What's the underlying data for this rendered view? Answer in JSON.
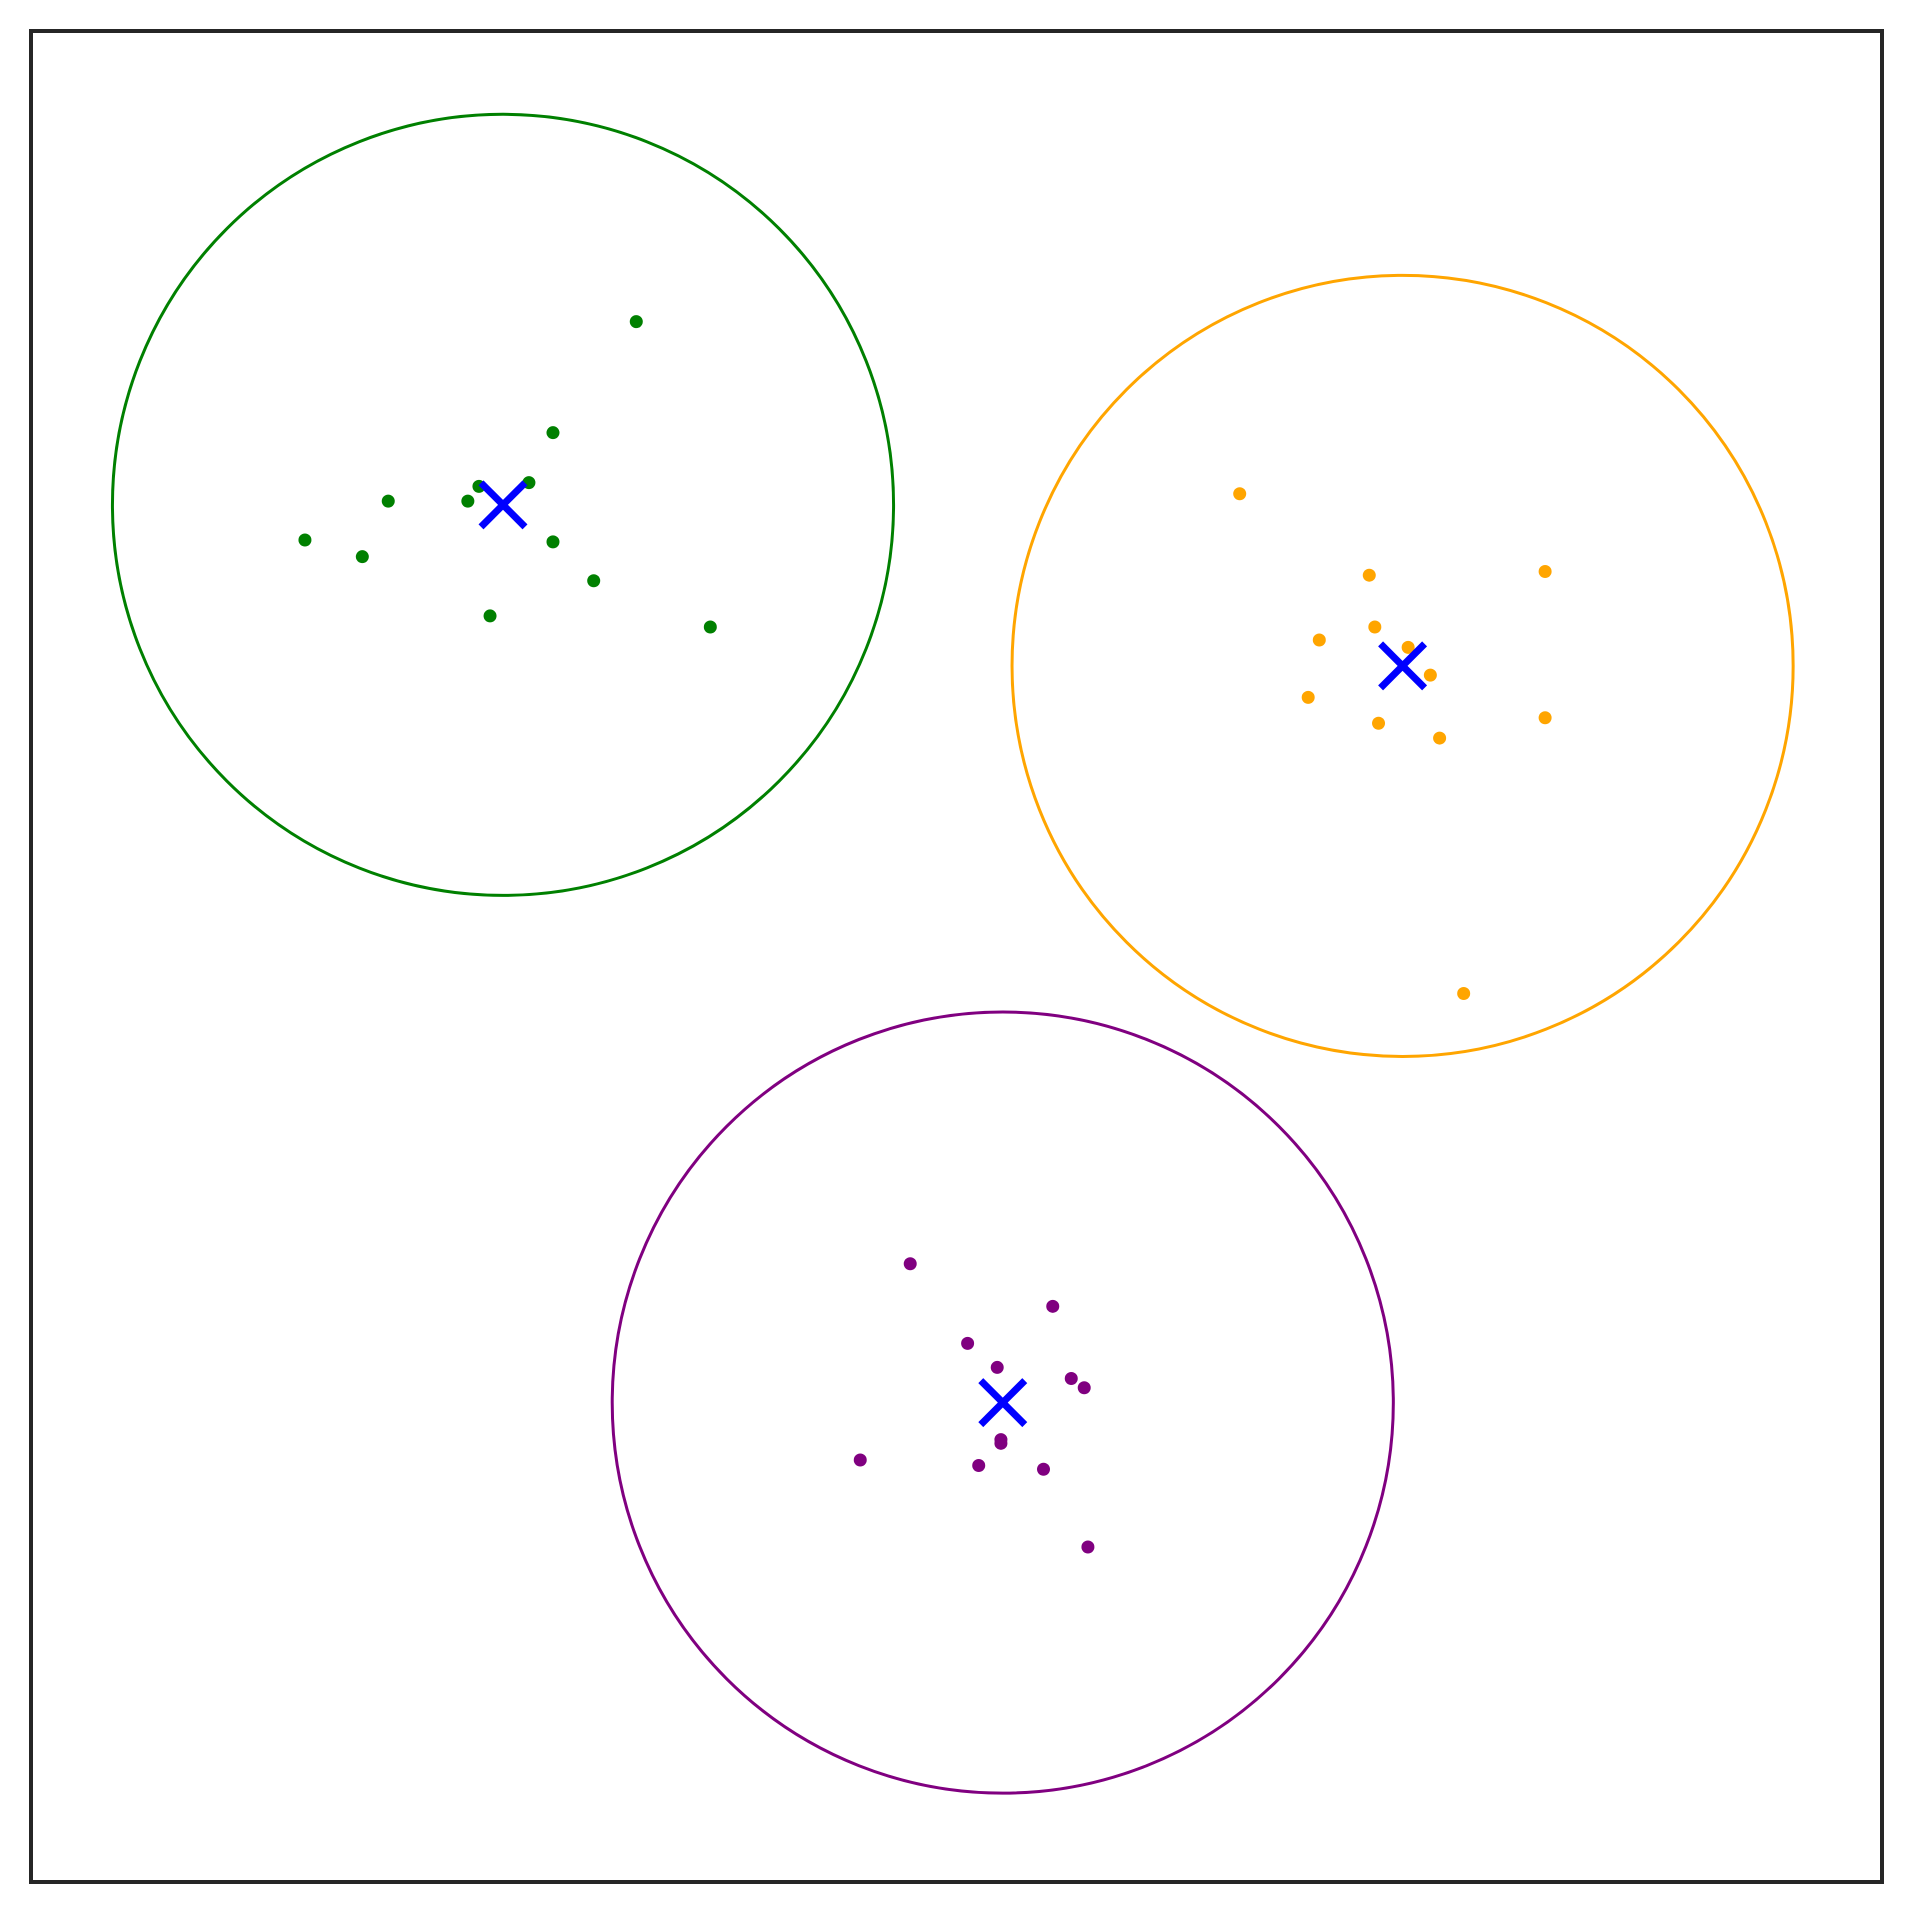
{
  "chart_data": {
    "type": "scatter",
    "title": "",
    "xlabel": "",
    "ylabel": "",
    "xlim": [
      0,
      100
    ],
    "ylim": [
      0,
      100
    ],
    "grid": false,
    "legend": "none",
    "centroid_color": "#0000ff",
    "clusters": [
      {
        "color": "#008000",
        "center": [
          25.5,
          74.4
        ],
        "radius": 21.1,
        "points": [
          [
            32.7,
            84.3
          ],
          [
            28.2,
            78.3
          ],
          [
            26.9,
            75.6
          ],
          [
            24.2,
            75.4
          ],
          [
            23.6,
            74.6
          ],
          [
            19.3,
            74.6
          ],
          [
            14.8,
            72.5
          ],
          [
            17.9,
            71.6
          ],
          [
            28.2,
            72.4
          ],
          [
            30.4,
            70.3
          ],
          [
            24.8,
            68.4
          ],
          [
            36.7,
            67.8
          ]
        ]
      },
      {
        "color": "#ffa500",
        "center": [
          74.1,
          65.7
        ],
        "radius": 21.1,
        "points": [
          [
            65.3,
            75.0
          ],
          [
            72.3,
            70.6
          ],
          [
            81.8,
            70.8
          ],
          [
            69.6,
            67.1
          ],
          [
            72.6,
            67.8
          ],
          [
            74.4,
            66.7
          ],
          [
            75.6,
            65.2
          ],
          [
            69.0,
            64.0
          ],
          [
            72.8,
            62.6
          ],
          [
            76.1,
            61.8
          ],
          [
            81.8,
            62.9
          ],
          [
            77.4,
            48.0
          ]
        ]
      },
      {
        "color": "#800080",
        "center": [
          52.5,
          25.9
        ],
        "radius": 21.1,
        "points": [
          [
            47.5,
            33.4
          ],
          [
            55.2,
            31.1
          ],
          [
            50.6,
            29.1
          ],
          [
            52.2,
            27.8
          ],
          [
            56.2,
            27.2
          ],
          [
            56.9,
            26.7
          ],
          [
            44.8,
            22.8
          ],
          [
            52.4,
            23.7
          ],
          [
            52.4,
            23.9
          ],
          [
            51.2,
            22.5
          ],
          [
            54.7,
            22.3
          ],
          [
            57.1,
            18.1
          ]
        ]
      }
    ]
  }
}
